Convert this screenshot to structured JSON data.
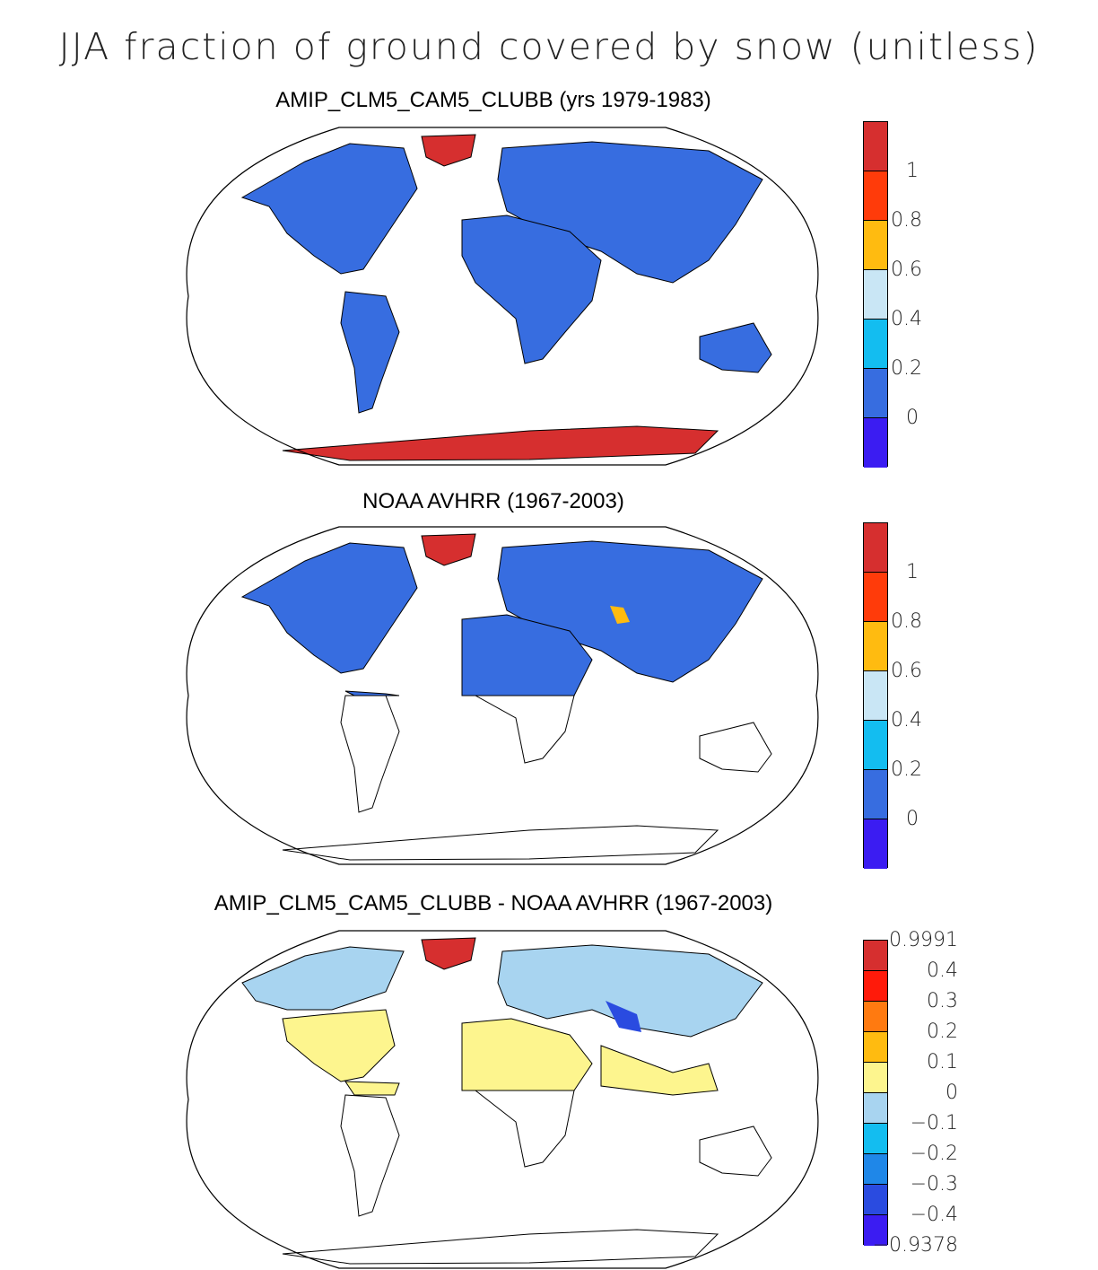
{
  "main_title": "JJA fraction of ground covered by snow (unitless)",
  "panels": [
    {
      "title": "AMIP_CLM5_CAM5_CLUBB (yrs 1979-1983)",
      "colorbar": {
        "colors": [
          "#d62f2f",
          "#ff3b0a",
          "#ffbb10",
          "#c9e6f5",
          "#13bdf0",
          "#376de0",
          "#3b1cf2"
        ],
        "labels": [
          "1",
          "0.8",
          "0.6",
          "0.4",
          "0.2",
          "0"
        ]
      }
    },
    {
      "title": "NOAA AVHRR (1967-2003)",
      "colorbar": {
        "colors": [
          "#d62f2f",
          "#ff3b0a",
          "#ffbb10",
          "#c9e6f5",
          "#13bdf0",
          "#376de0",
          "#3b1cf2"
        ],
        "labels": [
          "1",
          "0.8",
          "0.6",
          "0.4",
          "0.2",
          "0"
        ]
      }
    },
    {
      "title": "AMIP_CLM5_CAM5_CLUBB - NOAA AVHRR (1967-2003)",
      "colorbar": {
        "colors": [
          "#d62f2f",
          "#ff1a0a",
          "#ff7a10",
          "#ffbb10",
          "#fdf58e",
          "#a8d4f0",
          "#13bdf0",
          "#1f87e8",
          "#2a4be0",
          "#3b1cf2"
        ],
        "labels": [
          "0.9991",
          "0.4",
          "0.3",
          "0.2",
          "0.1",
          "0",
          "−0.1",
          "−0.2",
          "−0.3",
          "−0.4",
          "−0.9378"
        ]
      }
    }
  ]
}
